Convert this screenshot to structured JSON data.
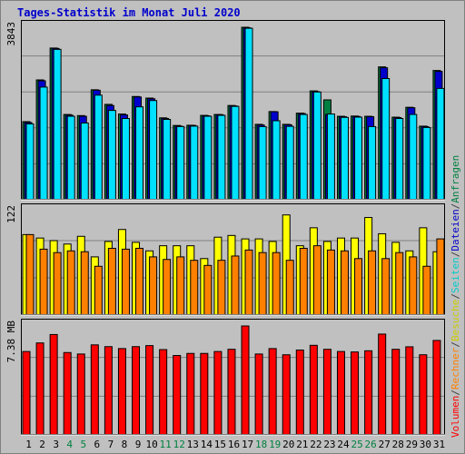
{
  "title": "Tages-Statistik im Monat Juli 2020",
  "legend": {
    "right_top": [
      {
        "text": "Anfragen",
        "color": "#008040"
      },
      {
        "text": "/",
        "color": "#404040"
      },
      {
        "text": "Dateien",
        "color": "#0000cc"
      },
      {
        "text": "/",
        "color": "#404040"
      },
      {
        "text": "Seiten",
        "color": "#00cccc"
      },
      {
        "text": "/",
        "color": "#404040"
      },
      {
        "text": "Besuche",
        "color": "#cccc00"
      },
      {
        "text": "/",
        "color": "#404040"
      },
      {
        "text": "Rechner",
        "color": "#ff8000"
      },
      {
        "text": "/",
        "color": "#404040"
      },
      {
        "text": "Volumen",
        "color": "#ff0000"
      }
    ]
  },
  "chart_data": {
    "type": "bar",
    "title": "Tages-Statistik im Monat Juli 2020",
    "categories": [
      "1",
      "2",
      "3",
      "4",
      "5",
      "6",
      "7",
      "8",
      "9",
      "10",
      "11",
      "12",
      "13",
      "14",
      "15",
      "16",
      "17",
      "18",
      "19",
      "20",
      "21",
      "22",
      "23",
      "24",
      "25",
      "26",
      "27",
      "28",
      "29",
      "30",
      "31"
    ],
    "weekend_days": [
      "4",
      "5",
      "11",
      "12",
      "18",
      "19",
      "25",
      "26"
    ],
    "colors": {
      "weekday_label": "#000000",
      "weekend_label": "#008040"
    },
    "panels": [
      {
        "name": "requests-panel",
        "max_label": "3843",
        "ymax": 3843,
        "series": [
          {
            "name": "Anfragen",
            "color": "#008040",
            "values": [
              1740,
              2670,
              3380,
              1900,
              1875,
              2450,
              2125,
              1910,
              2300,
              2265,
              1825,
              1655,
              1660,
              1880,
              1900,
              2100,
              3843,
              1680,
              1965,
              1680,
              1930,
              2425,
              2225,
              1860,
              1865,
              1860,
              2960,
              1840,
              2060,
              1640,
              2880
            ]
          },
          {
            "name": "Dateien",
            "color": "#0000cc",
            "values": [
              1720,
              2650,
              3370,
              1885,
              1860,
              2440,
              2100,
              1890,
              2290,
              2250,
              1810,
              1640,
              1655,
              1870,
              1895,
              2090,
              3830,
              1665,
              1960,
              1670,
              1920,
              2410,
              1900,
              1850,
              1855,
              1850,
              2940,
              1830,
              2050,
              1630,
              2860
            ]
          },
          {
            "name": "Seiten",
            "color": "#00e0ff",
            "values": [
              1690,
              2510,
              3350,
              1860,
              1710,
              2330,
              1990,
              1810,
              2070,
              2210,
              1790,
              1630,
              1640,
              1860,
              1880,
              2080,
              3820,
              1630,
              1760,
              1635,
              1900,
              2400,
              1910,
              1835,
              1840,
              1630,
              2700,
              1810,
              1900,
              1610,
              2480
            ]
          }
        ]
      },
      {
        "name": "visits-panel",
        "max_label": "122",
        "ymax": 122,
        "series": [
          {
            "name": "Besuche",
            "color": "#ffff00",
            "values": [
              94,
              90,
              87,
              83,
              92,
              68,
              86,
              100,
              85,
              75,
              81,
              81,
              81,
              66,
              91,
              93,
              89,
              89,
              86,
              117,
              81,
              102,
              86,
              90,
              90,
              114,
              95,
              85,
              75,
              102,
              74
            ]
          },
          {
            "name": "Rechner",
            "color": "#ff8000",
            "values": [
              94,
              77,
              73,
              75,
              74,
              57,
              78,
              77,
              78,
              68,
              65,
              68,
              64,
              58,
              64,
              69,
              76,
              73,
              73,
              64,
              78,
              81,
              76,
              75,
              66,
              75,
              66,
              73,
              68,
              57,
              89
            ]
          }
        ]
      },
      {
        "name": "volume-panel",
        "max_label": "7.38 MB",
        "ymax": 7.38,
        "series": [
          {
            "name": "Volumen",
            "color": "#ff0000",
            "values": [
              5.65,
              6.23,
              6.8,
              5.58,
              5.48,
              6.1,
              5.98,
              5.85,
              5.98,
              6.05,
              5.78,
              5.38,
              5.52,
              5.52,
              5.65,
              5.8,
              7.38,
              5.48,
              5.85,
              5.43,
              5.75,
              6.07,
              5.8,
              5.65,
              5.62,
              5.7,
              6.83,
              5.8,
              5.97,
              5.43,
              6.4
            ]
          }
        ]
      }
    ]
  }
}
